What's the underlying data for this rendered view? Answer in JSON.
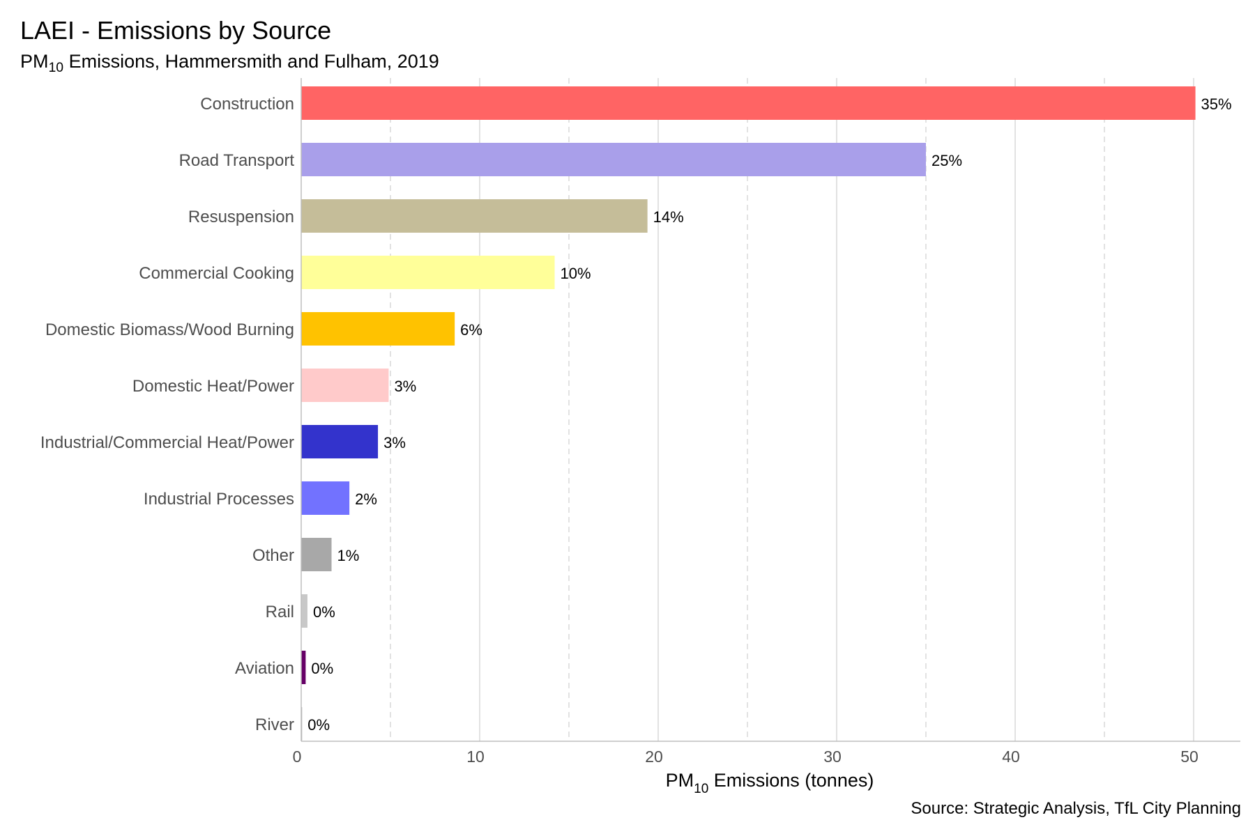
{
  "header": {
    "title": "LAEI - Emissions by Source",
    "subtitle_pre": "PM",
    "subtitle_sub": "10",
    "subtitle_post": " Emissions, Hammersmith and Fulham, 2019"
  },
  "caption": "Source: Strategic Analysis, TfL City Planning",
  "chart_data": {
    "type": "bar",
    "orientation": "horizontal",
    "title": "LAEI - Emissions by Source",
    "subtitle": "PM10 Emissions, Hammersmith and Fulham, 2019",
    "xlabel_pre": "PM",
    "xlabel_sub": "10",
    "xlabel_post": " Emissions (tonnes)",
    "xlim": [
      0,
      52.5
    ],
    "xticks": [
      0,
      10,
      20,
      30,
      40,
      50
    ],
    "categories": [
      "Construction",
      "Road Transport",
      "Resuspension",
      "Commercial Cooking",
      "Domestic Biomass/Wood Burning",
      "Domestic Heat/Power",
      "Industrial/Commercial Heat/Power",
      "Industrial Processes",
      "Other",
      "Rail",
      "Aviation",
      "River"
    ],
    "values": [
      50.1,
      35.0,
      19.4,
      14.2,
      8.6,
      4.9,
      4.3,
      2.7,
      1.7,
      0.35,
      0.25,
      0.05
    ],
    "labels": [
      "35%",
      "25%",
      "14%",
      "10%",
      "6%",
      "3%",
      "3%",
      "2%",
      "1%",
      "0%",
      "0%",
      "0%"
    ],
    "colors": [
      "#FF6464",
      "#A99FEA",
      "#C5BD99",
      "#FFFF99",
      "#FFC200",
      "#FFCACA",
      "#3333CC",
      "#7272FF",
      "#A8A8A8",
      "#C8C8C8",
      "#660066",
      "#AAAAAA"
    ],
    "grid": true,
    "legend": "none"
  }
}
